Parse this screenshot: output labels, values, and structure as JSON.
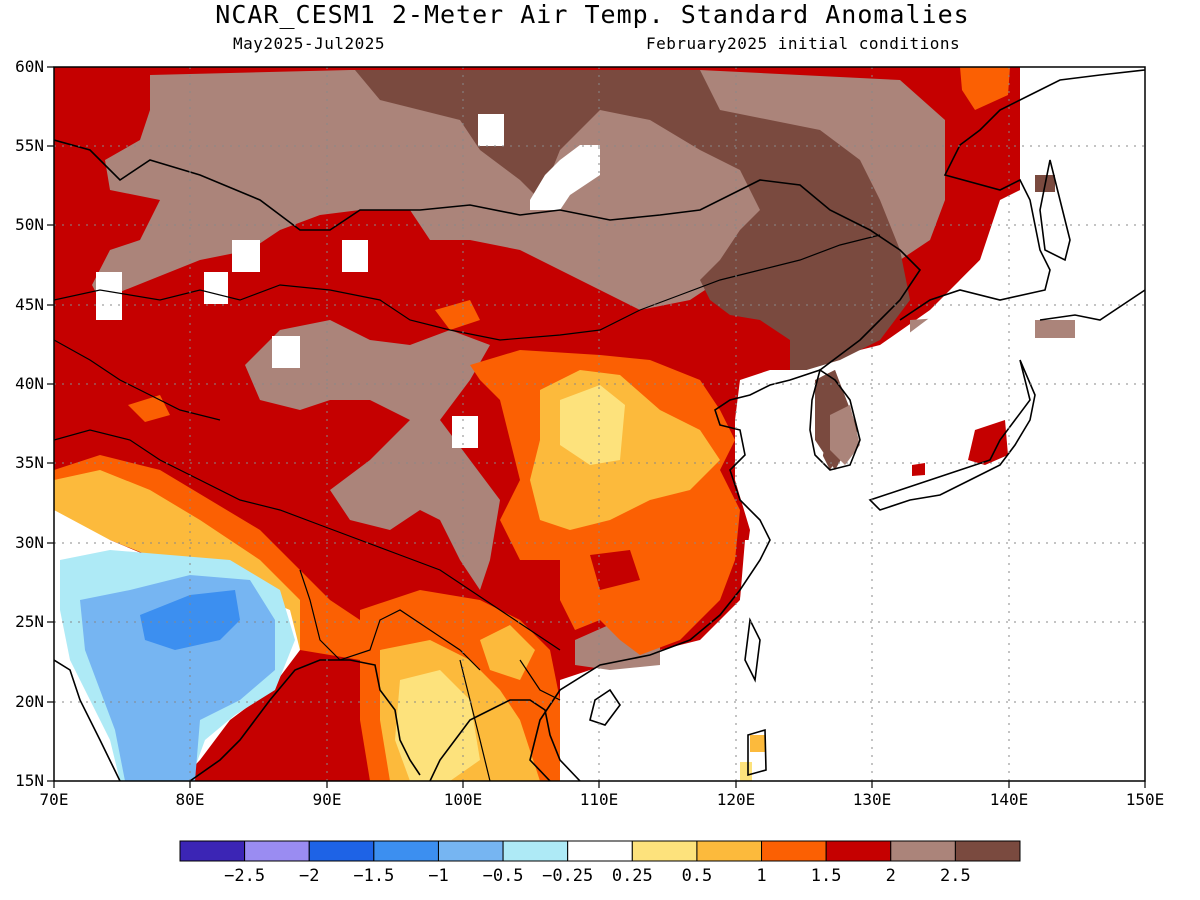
{
  "title": "NCAR_CESM1 2-Meter Air Temp. Standard Anomalies",
  "subtitle_left": "May2025-Jul2025",
  "subtitle_right": "February2025 initial conditions",
  "lat_labels": [
    "60N",
    "55N",
    "50N",
    "45N",
    "40N",
    "35N",
    "30N",
    "25N",
    "20N",
    "15N"
  ],
  "lon_labels": [
    "70E",
    "80E",
    "90E",
    "100E",
    "110E",
    "120E",
    "130E",
    "140E",
    "150E"
  ],
  "colorbar": {
    "colors": [
      "#3b25b5",
      "#9a8cf2",
      "#1e63e6",
      "#3c8ff0",
      "#76b5f2",
      "#aeeaf6",
      "#ffffff",
      "#fde27c",
      "#fcba3c",
      "#fb6003",
      "#c50000",
      "#ab847a",
      "#7a4a3f"
    ],
    "labels": [
      "-2.5",
      "-2",
      "-1.5",
      "-1",
      "-0.5",
      "-0.25",
      "0.25",
      "0.5",
      "1",
      "1.5",
      "2",
      "2.5"
    ]
  },
  "chart_data": {
    "type": "heatmap",
    "title": "NCAR_CESM1 2-Meter Air Temp. Standard Anomalies",
    "x_range": [
      70,
      150
    ],
    "y_range": [
      15,
      60
    ],
    "x_ticks": [
      "70E",
      "80E",
      "90E",
      "100E",
      "110E",
      "120E",
      "130E",
      "140E",
      "150E"
    ],
    "y_ticks": [
      "60N",
      "55N",
      "50N",
      "45N",
      "40N",
      "35N",
      "30N",
      "25N",
      "20N",
      "15N"
    ],
    "levels": [
      -2.5,
      -2,
      -1.5,
      -1,
      -0.5,
      -0.25,
      0.25,
      0.5,
      1,
      1.5,
      2,
      2.5
    ],
    "grid": true
  }
}
